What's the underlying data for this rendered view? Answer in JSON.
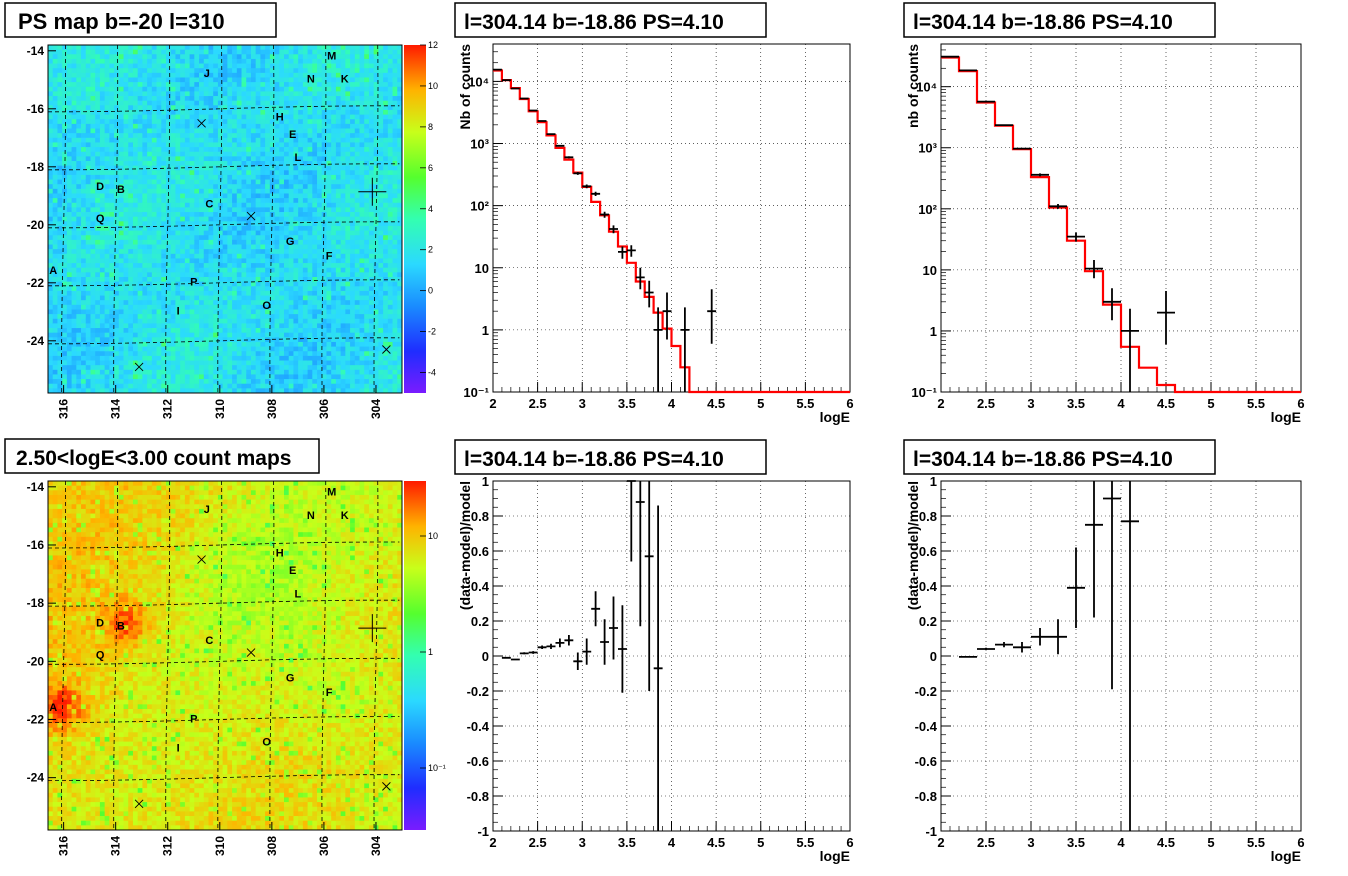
{
  "panels": {
    "ps_map": {
      "title": "PS map b=-20 l=310",
      "x_ticks": [
        "316",
        "314",
        "312",
        "310",
        "308",
        "306",
        "304"
      ],
      "y_ticks": [
        "-14",
        "-16",
        "-18",
        "-20",
        "-22",
        "-24"
      ],
      "colorbar_ticks": [
        "12",
        "10",
        "8",
        "6",
        "4",
        "2",
        "0",
        "-2",
        "-4"
      ]
    },
    "count_map": {
      "title": "2.50<logE<3.00 count maps",
      "x_ticks": [
        "316",
        "314",
        "312",
        "310",
        "308",
        "306",
        "304"
      ],
      "y_ticks": [
        "-14",
        "-16",
        "-18",
        "-20",
        "-22",
        "-24"
      ],
      "colorbar_ticks": [
        "10",
        "1",
        "10⁻¹"
      ]
    },
    "sources": [
      {
        "label": "M",
        "l": 305.7,
        "b": -14.3
      },
      {
        "label": "J",
        "l": 310.5,
        "b": -14.9
      },
      {
        "label": "N",
        "l": 306.5,
        "b": -15.1
      },
      {
        "label": "K",
        "l": 305.2,
        "b": -15.1
      },
      {
        "label": "H",
        "l": 307.7,
        "b": -16.4
      },
      {
        "label": "E",
        "l": 307.2,
        "b": -17.0
      },
      {
        "label": "L",
        "l": 307.0,
        "b": -17.8
      },
      {
        "label": "D",
        "l": 314.6,
        "b": -18.8
      },
      {
        "label": "B",
        "l": 313.8,
        "b": -18.9
      },
      {
        "label": "C",
        "l": 310.4,
        "b": -19.4
      },
      {
        "label": "Q",
        "l": 314.6,
        "b": -19.9
      },
      {
        "label": "G",
        "l": 307.3,
        "b": -20.7
      },
      {
        "label": "F",
        "l": 305.8,
        "b": -21.2
      },
      {
        "label": "A",
        "l": 316.4,
        "b": -21.7
      },
      {
        "label": "P",
        "l": 311.0,
        "b": -22.1
      },
      {
        "label": "O",
        "l": 308.2,
        "b": -22.9
      },
      {
        "label": "I",
        "l": 311.6,
        "b": -23.1
      }
    ],
    "crosses": [
      {
        "l": 310.7,
        "b": -16.5
      },
      {
        "l": 308.8,
        "b": -19.7
      },
      {
        "l": 313.1,
        "b": -24.9
      },
      {
        "l": 303.6,
        "b": -24.3
      }
    ],
    "cursor": {
      "l": 304.14,
      "b": -18.86
    }
  },
  "chart_data": [
    {
      "type": "step",
      "title": "l=304.14 b=-18.86 PS=4.10",
      "xlabel": "logE",
      "ylabel": "Nb of counts",
      "xlim": [
        2,
        6
      ],
      "ylim": [
        0.1,
        40000
      ],
      "log_y": true,
      "grid": true,
      "x_ticks": [
        "2",
        "2.5",
        "3",
        "3.5",
        "4",
        "4.5",
        "5",
        "5.5",
        "6"
      ],
      "y_ticks": [
        "10⁻¹",
        "1",
        "10",
        "10²",
        "10³",
        "10⁴"
      ],
      "model": {
        "edges": [
          2,
          2.1,
          2.2,
          2.3,
          2.4,
          2.5,
          2.6,
          2.7,
          2.8,
          2.9,
          3.0,
          3.1,
          3.2,
          3.3,
          3.4,
          3.5,
          3.6,
          3.7,
          3.8,
          3.9,
          4.0,
          4.1,
          4.2,
          6.0
        ],
        "values": [
          15000,
          10500,
          7800,
          5200,
          3300,
          2200,
          1350,
          850,
          550,
          340,
          200,
          115,
          70,
          38,
          22,
          12,
          6,
          3.4,
          1.9,
          1.05,
          0.55,
          0.25,
          0.1
        ]
      },
      "points": [
        {
          "x": 2.05,
          "y": 15500,
          "ylo": 15300,
          "yhi": 15700,
          "xerr": 0.05
        },
        {
          "x": 2.15,
          "y": 10500,
          "ylo": 10300,
          "yhi": 10700,
          "xerr": 0.05
        },
        {
          "x": 2.25,
          "y": 7700,
          "ylo": 7550,
          "yhi": 7850,
          "xerr": 0.05
        },
        {
          "x": 2.35,
          "y": 5300,
          "ylo": 5200,
          "yhi": 5400,
          "xerr": 0.05
        },
        {
          "x": 2.45,
          "y": 3400,
          "ylo": 3320,
          "yhi": 3480,
          "xerr": 0.05
        },
        {
          "x": 2.55,
          "y": 2300,
          "ylo": 2240,
          "yhi": 2360,
          "xerr": 0.05
        },
        {
          "x": 2.65,
          "y": 1420,
          "ylo": 1380,
          "yhi": 1460,
          "xerr": 0.05
        },
        {
          "x": 2.75,
          "y": 920,
          "ylo": 890,
          "yhi": 950,
          "xerr": 0.05
        },
        {
          "x": 2.85,
          "y": 600,
          "ylo": 575,
          "yhi": 625,
          "xerr": 0.05
        },
        {
          "x": 2.95,
          "y": 330,
          "ylo": 312,
          "yhi": 348,
          "xerr": 0.05
        },
        {
          "x": 3.05,
          "y": 205,
          "ylo": 191,
          "yhi": 219,
          "xerr": 0.05
        },
        {
          "x": 3.15,
          "y": 155,
          "ylo": 143,
          "yhi": 167,
          "xerr": 0.05
        },
        {
          "x": 3.25,
          "y": 72,
          "ylo": 64,
          "yhi": 80,
          "xerr": 0.05
        },
        {
          "x": 3.35,
          "y": 42,
          "ylo": 36,
          "yhi": 48,
          "xerr": 0.05
        },
        {
          "x": 3.45,
          "y": 18,
          "ylo": 14,
          "yhi": 22,
          "xerr": 0.05
        },
        {
          "x": 3.55,
          "y": 19,
          "ylo": 15,
          "yhi": 23,
          "xerr": 0.05
        },
        {
          "x": 3.65,
          "y": 7,
          "ylo": 4.5,
          "yhi": 10,
          "xerr": 0.05
        },
        {
          "x": 3.75,
          "y": 4,
          "ylo": 2.3,
          "yhi": 6.2,
          "xerr": 0.05
        },
        {
          "x": 3.85,
          "y": 1,
          "ylo": 0.1,
          "yhi": 2.3,
          "xerr": 0.05
        },
        {
          "x": 3.95,
          "y": 2,
          "ylo": 0.7,
          "yhi": 4,
          "xerr": 0.05
        },
        {
          "x": 4.15,
          "y": 1,
          "ylo": 0.1,
          "yhi": 2.3,
          "xerr": 0.05
        },
        {
          "x": 4.45,
          "y": 2,
          "ylo": 0.6,
          "yhi": 4.5,
          "xerr": 0.05
        }
      ]
    },
    {
      "type": "step",
      "title": "l=304.14 b=-18.86 PS=4.10",
      "xlabel": "logE",
      "ylabel": "nb of counts",
      "xlim": [
        2,
        6
      ],
      "ylim": [
        0.1,
        50000
      ],
      "log_y": true,
      "grid": true,
      "x_ticks": [
        "2",
        "2.5",
        "3",
        "3.5",
        "4",
        "4.5",
        "5",
        "5.5",
        "6"
      ],
      "y_ticks": [
        "10⁻¹",
        "1",
        "10",
        "10²",
        "10³",
        "10⁴"
      ],
      "model": {
        "edges": [
          2,
          2.2,
          2.4,
          2.6,
          2.8,
          3.0,
          3.2,
          3.4,
          3.6,
          3.8,
          4.0,
          4.2,
          4.4,
          4.6,
          6.0
        ],
        "values": [
          30000,
          18000,
          5500,
          2300,
          950,
          330,
          105,
          30,
          9.5,
          2.7,
          0.55,
          0.25,
          0.13,
          0.1
        ]
      },
      "points": [
        {
          "x": 2.1,
          "y": 31000,
          "ylo": 30500,
          "yhi": 31500,
          "xerr": 0.1
        },
        {
          "x": 2.3,
          "y": 18500,
          "ylo": 18200,
          "yhi": 18800,
          "xerr": 0.1
        },
        {
          "x": 2.5,
          "y": 5700,
          "ylo": 5600,
          "yhi": 5800,
          "xerr": 0.1
        },
        {
          "x": 2.7,
          "y": 2350,
          "ylo": 2290,
          "yhi": 2410,
          "xerr": 0.1
        },
        {
          "x": 2.9,
          "y": 970,
          "ylo": 940,
          "yhi": 1000,
          "xerr": 0.1
        },
        {
          "x": 3.1,
          "y": 360,
          "ylo": 340,
          "yhi": 380,
          "xerr": 0.1
        },
        {
          "x": 3.3,
          "y": 110,
          "ylo": 100,
          "yhi": 120,
          "xerr": 0.1
        },
        {
          "x": 3.5,
          "y": 35,
          "ylo": 29,
          "yhi": 41,
          "xerr": 0.1
        },
        {
          "x": 3.7,
          "y": 10.5,
          "ylo": 7.3,
          "yhi": 14.5,
          "xerr": 0.1
        },
        {
          "x": 3.9,
          "y": 3,
          "ylo": 1.5,
          "yhi": 5,
          "xerr": 0.1
        },
        {
          "x": 4.1,
          "y": 1,
          "ylo": 0.1,
          "yhi": 2.3,
          "xerr": 0.1
        },
        {
          "x": 4.5,
          "y": 2,
          "ylo": 0.6,
          "yhi": 4.5,
          "xerr": 0.1
        }
      ]
    },
    {
      "type": "scatter",
      "title": "l=304.14 b=-18.86 PS=4.10",
      "xlabel": "logE",
      "ylabel": "(data-model)/model",
      "xlim": [
        2,
        6
      ],
      "ylim": [
        -1,
        1
      ],
      "grid": true,
      "x_ticks": [
        "2",
        "2.5",
        "3",
        "3.5",
        "4",
        "4.5",
        "5",
        "5.5",
        "6"
      ],
      "y_ticks": [
        "1",
        "0.8",
        "0.6",
        "0.4",
        "0.2",
        "0",
        "-0.2",
        "-0.4",
        "-0.6",
        "-0.8",
        "-1"
      ],
      "points": [
        {
          "x": 2.15,
          "y": -0.01,
          "ylo": -0.013,
          "yhi": -0.007,
          "xerr": 0.05
        },
        {
          "x": 2.25,
          "y": -0.02,
          "ylo": -0.024,
          "yhi": -0.016,
          "xerr": 0.05
        },
        {
          "x": 2.35,
          "y": 0.015,
          "ylo": 0.009,
          "yhi": 0.021,
          "xerr": 0.05
        },
        {
          "x": 2.45,
          "y": 0.02,
          "ylo": 0.012,
          "yhi": 0.028,
          "xerr": 0.05
        },
        {
          "x": 2.55,
          "y": 0.05,
          "ylo": 0.04,
          "yhi": 0.06,
          "xerr": 0.05
        },
        {
          "x": 2.65,
          "y": 0.055,
          "ylo": 0.04,
          "yhi": 0.07,
          "xerr": 0.05
        },
        {
          "x": 2.75,
          "y": 0.075,
          "ylo": 0.05,
          "yhi": 0.1,
          "xerr": 0.05
        },
        {
          "x": 2.85,
          "y": 0.09,
          "ylo": 0.06,
          "yhi": 0.12,
          "xerr": 0.05
        },
        {
          "x": 2.95,
          "y": -0.03,
          "ylo": -0.08,
          "yhi": 0.02,
          "xerr": 0.05
        },
        {
          "x": 3.05,
          "y": 0.025,
          "ylo": -0.05,
          "yhi": 0.1,
          "xerr": 0.05
        },
        {
          "x": 3.15,
          "y": 0.27,
          "ylo": 0.17,
          "yhi": 0.37,
          "xerr": 0.05
        },
        {
          "x": 3.25,
          "y": 0.08,
          "ylo": -0.05,
          "yhi": 0.21,
          "xerr": 0.05
        },
        {
          "x": 3.35,
          "y": 0.16,
          "ylo": -0.02,
          "yhi": 0.34,
          "xerr": 0.05
        },
        {
          "x": 3.45,
          "y": 0.04,
          "ylo": -0.21,
          "yhi": 0.29,
          "xerr": 0.05
        },
        {
          "x": 3.55,
          "y": 1.0,
          "ylo": 0.54,
          "yhi": 1.0,
          "xerr": 0.05
        },
        {
          "x": 3.65,
          "y": 0.88,
          "ylo": 0.17,
          "yhi": 1.0,
          "xerr": 0.05
        },
        {
          "x": 3.75,
          "y": 0.57,
          "ylo": -0.2,
          "yhi": 1.0,
          "xerr": 0.05
        },
        {
          "x": 3.85,
          "y": -0.07,
          "ylo": -1.0,
          "yhi": 0.86,
          "xerr": 0.05
        }
      ]
    },
    {
      "type": "scatter",
      "title": "l=304.14 b=-18.86 PS=4.10",
      "xlabel": "logE",
      "ylabel": "(data-model)/model",
      "xlim": [
        2,
        6
      ],
      "ylim": [
        -1,
        1
      ],
      "grid": true,
      "x_ticks": [
        "2",
        "2.5",
        "3",
        "3.5",
        "4",
        "4.5",
        "5",
        "5.5",
        "6"
      ],
      "y_ticks": [
        "1",
        "0.8",
        "0.6",
        "0.4",
        "0.2",
        "0",
        "-0.2",
        "-0.4",
        "-0.6",
        "-0.8",
        "-1"
      ],
      "points": [
        {
          "x": 2.3,
          "y": -0.005,
          "ylo": -0.008,
          "yhi": -0.002,
          "xerr": 0.1
        },
        {
          "x": 2.5,
          "y": 0.04,
          "ylo": 0.033,
          "yhi": 0.047,
          "xerr": 0.1
        },
        {
          "x": 2.7,
          "y": 0.065,
          "ylo": 0.05,
          "yhi": 0.08,
          "xerr": 0.1
        },
        {
          "x": 2.9,
          "y": 0.05,
          "ylo": 0.02,
          "yhi": 0.08,
          "xerr": 0.1
        },
        {
          "x": 3.1,
          "y": 0.11,
          "ylo": 0.06,
          "yhi": 0.16,
          "xerr": 0.1
        },
        {
          "x": 3.3,
          "y": 0.11,
          "ylo": 0.01,
          "yhi": 0.21,
          "xerr": 0.1
        },
        {
          "x": 3.5,
          "y": 0.39,
          "ylo": 0.16,
          "yhi": 0.62,
          "xerr": 0.1
        },
        {
          "x": 3.7,
          "y": 0.75,
          "ylo": 0.22,
          "yhi": 1.0,
          "xerr": 0.1
        },
        {
          "x": 3.9,
          "y": 0.9,
          "ylo": -0.19,
          "yhi": 1.0,
          "xerr": 0.1
        },
        {
          "x": 4.1,
          "y": 0.77,
          "ylo": -1.0,
          "yhi": 1.0,
          "xerr": 0.1
        }
      ]
    }
  ],
  "colors": {
    "model_line": "#ff0000",
    "data": "#000000",
    "grid": "#000000"
  }
}
